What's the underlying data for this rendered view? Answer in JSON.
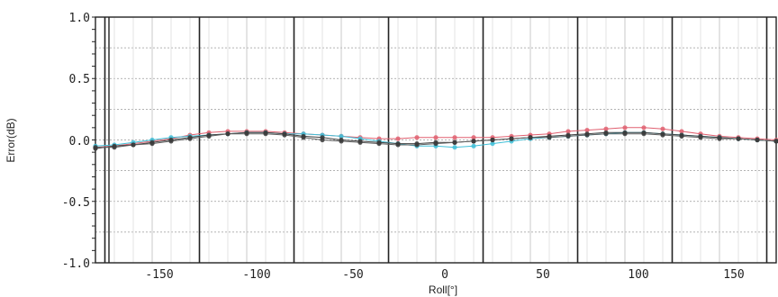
{
  "chart_data": {
    "type": "line",
    "title": "",
    "xlabel": "Roll[°]",
    "ylabel": "Error(dB)",
    "xlim": [
      -180,
      180
    ],
    "ylim": [
      -1.0,
      1.0
    ],
    "yticks": [
      "1.0",
      "0.5",
      "0.0",
      "-0.5",
      "-1.0"
    ],
    "xticks": [
      "-150",
      "-100",
      "-50",
      "0",
      "50",
      "100",
      "150"
    ],
    "grid": true,
    "legend": "none",
    "x": [
      -180,
      -170,
      -160,
      -150,
      -140,
      -130,
      -120,
      -110,
      -100,
      -90,
      -80,
      -70,
      -60,
      -50,
      -40,
      -30,
      -20,
      -10,
      0,
      10,
      20,
      30,
      40,
      50,
      60,
      70,
      80,
      90,
      100,
      110,
      120,
      130,
      140,
      150,
      160,
      170,
      180
    ],
    "series": [
      {
        "color": "#e06070",
        "values": [
          -0.06,
          -0.05,
          -0.03,
          -0.01,
          0.01,
          0.04,
          0.06,
          0.07,
          0.07,
          0.07,
          0.06,
          0.05,
          0.04,
          0.03,
          0.02,
          0.01,
          0.01,
          0.02,
          0.02,
          0.02,
          0.02,
          0.02,
          0.03,
          0.04,
          0.05,
          0.07,
          0.08,
          0.09,
          0.1,
          0.1,
          0.09,
          0.07,
          0.05,
          0.03,
          0.02,
          0.01,
          0.0
        ]
      },
      {
        "color": "#40c0d8",
        "values": [
          -0.05,
          -0.04,
          -0.02,
          0.0,
          0.02,
          0.03,
          0.04,
          0.05,
          0.06,
          0.06,
          0.05,
          0.05,
          0.04,
          0.03,
          0.01,
          -0.01,
          -0.03,
          -0.05,
          -0.05,
          -0.06,
          -0.05,
          -0.03,
          -0.01,
          0.01,
          0.02,
          0.03,
          0.04,
          0.05,
          0.06,
          0.06,
          0.05,
          0.04,
          0.03,
          0.02,
          0.01,
          0.0,
          -0.01
        ]
      },
      {
        "color": "#404040",
        "values": [
          -0.07,
          -0.05,
          -0.04,
          -0.02,
          0.0,
          0.02,
          0.04,
          0.05,
          0.06,
          0.06,
          0.05,
          0.03,
          0.02,
          0.0,
          -0.01,
          -0.02,
          -0.03,
          -0.03,
          -0.02,
          -0.02,
          -0.01,
          0.0,
          0.01,
          0.02,
          0.03,
          0.04,
          0.05,
          0.06,
          0.06,
          0.06,
          0.05,
          0.04,
          0.03,
          0.02,
          0.01,
          0.0,
          -0.01
        ]
      },
      {
        "color": "#606060",
        "values": [
          -0.06,
          -0.06,
          -0.04,
          -0.03,
          -0.01,
          0.01,
          0.03,
          0.05,
          0.05,
          0.05,
          0.04,
          0.02,
          0.0,
          -0.01,
          -0.02,
          -0.03,
          -0.04,
          -0.04,
          -0.03,
          -0.02,
          -0.01,
          0.0,
          0.01,
          0.02,
          0.02,
          0.03,
          0.04,
          0.05,
          0.05,
          0.05,
          0.04,
          0.03,
          0.02,
          0.01,
          0.01,
          0.0,
          -0.01
        ]
      }
    ]
  }
}
